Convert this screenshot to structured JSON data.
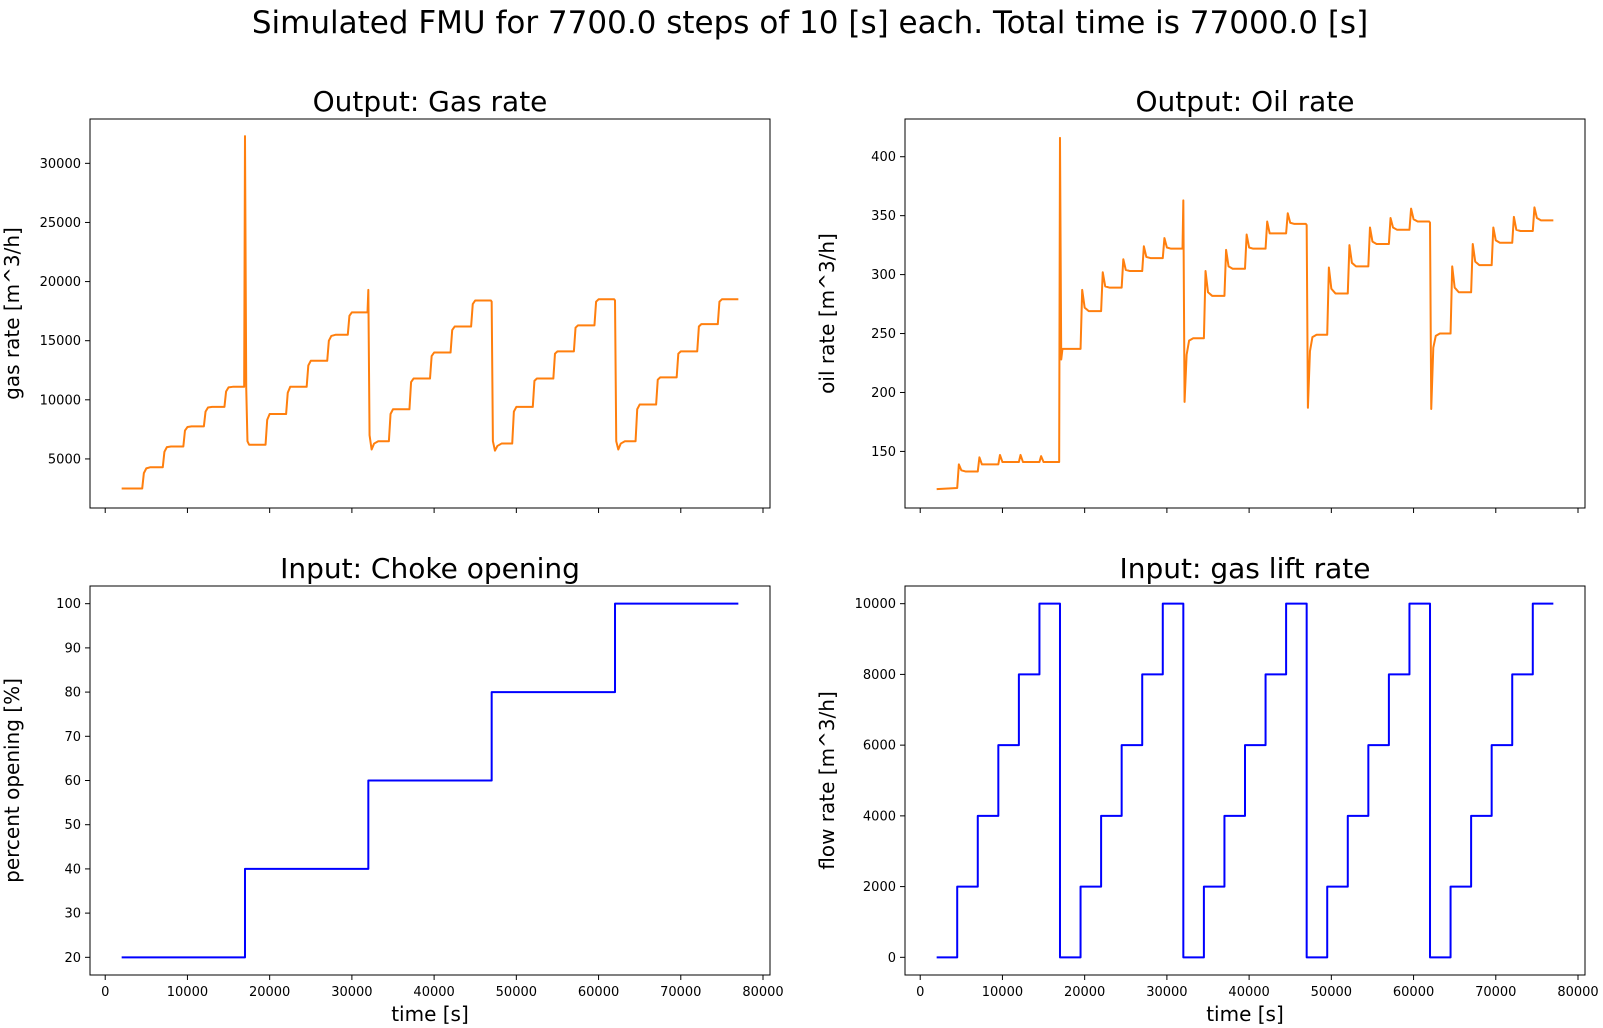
{
  "figure": {
    "suptitle": "Simulated FMU for 7700.0 steps of 10 [s] each. Total time is 77000.0 [s]"
  },
  "colors": {
    "output_series": "#ff7f0e",
    "input_series": "#0000ff",
    "axes": "#000000",
    "background": "#ffffff"
  },
  "chart_data": [
    {
      "id": "gas_rate",
      "type": "line",
      "title": "Output: Gas rate",
      "xlabel": "",
      "ylabel": "gas rate [m^3/h]",
      "xlim": [
        -1850,
        80850
      ],
      "ylim": [
        850,
        33750
      ],
      "xticks": [
        0,
        10000,
        20000,
        30000,
        40000,
        50000,
        60000,
        70000,
        80000
      ],
      "xtick_labels_visible": false,
      "yticks": [
        5000,
        10000,
        15000,
        20000,
        25000,
        30000
      ],
      "ytick_labels": [
        "5000",
        "10000",
        "15000",
        "20000",
        "25000",
        "30000"
      ],
      "color": "#ff7f0e",
      "grid": false,
      "series": [
        {
          "x": [
            2000,
            4500,
            4700,
            5000,
            5500,
            7000,
            7200,
            7500,
            8000,
            9500,
            9700,
            10000,
            10500,
            12000,
            12200,
            12500,
            13000,
            14500,
            14700,
            15000,
            15500,
            16900,
            17000,
            17150,
            17300,
            17500,
            18000,
            19500,
            19700,
            20000,
            20500,
            22000,
            22200,
            22500,
            23000,
            24500,
            24700,
            25000,
            25500,
            27000,
            27200,
            27500,
            28000,
            29500,
            29700,
            30000,
            30500,
            31900,
            32000,
            32150,
            32400,
            32700,
            33200,
            34500,
            34700,
            35000,
            35500,
            37000,
            37200,
            37500,
            38000,
            39500,
            39700,
            40000,
            40500,
            42000,
            42200,
            42500,
            43000,
            44500,
            44700,
            45000,
            45500,
            46900,
            47000,
            47150,
            47400,
            47700,
            48200,
            49500,
            49700,
            50000,
            50500,
            52000,
            52200,
            52500,
            53000,
            54500,
            54700,
            55000,
            55500,
            57000,
            57200,
            57500,
            58000,
            59500,
            59700,
            60000,
            60500,
            61900,
            62000,
            62150,
            62400,
            62700,
            63200,
            64500,
            64700,
            65000,
            65500,
            67000,
            67200,
            67500,
            68000,
            69500,
            69700,
            70000,
            70500,
            72000,
            72200,
            72500,
            73000,
            74500,
            74700,
            75000,
            75500,
            77000
          ],
          "y": [
            2500,
            2500,
            3800,
            4200,
            4300,
            4300,
            5600,
            6000,
            6050,
            6050,
            7400,
            7700,
            7750,
            7750,
            9000,
            9350,
            9400,
            9400,
            10700,
            11050,
            11100,
            11100,
            32300,
            11000,
            6500,
            6200,
            6200,
            6200,
            8300,
            8800,
            8800,
            8800,
            10600,
            11100,
            11100,
            11100,
            12900,
            13300,
            13300,
            13300,
            15000,
            15400,
            15500,
            15500,
            17100,
            17400,
            17400,
            17400,
            19300,
            7000,
            5800,
            6300,
            6500,
            6500,
            8800,
            9200,
            9200,
            9200,
            11500,
            11800,
            11800,
            11800,
            13700,
            14000,
            14000,
            14000,
            15900,
            16200,
            16200,
            16200,
            18100,
            18400,
            18400,
            18400,
            18300,
            6500,
            5700,
            6100,
            6300,
            6300,
            9000,
            9400,
            9400,
            9400,
            11600,
            11800,
            11800,
            11800,
            13900,
            14100,
            14100,
            14100,
            16100,
            16300,
            16300,
            16300,
            18300,
            18500,
            18500,
            18500,
            18400,
            6500,
            5800,
            6300,
            6500,
            6500,
            9200,
            9600,
            9600,
            9600,
            11700,
            11900,
            11900,
            11900,
            13900,
            14100,
            14100,
            14100,
            16200,
            16400,
            16400,
            16400,
            18300,
            18500,
            18500,
            18500
          ]
        }
      ]
    },
    {
      "id": "oil_rate",
      "type": "line",
      "title": "Output: Oil rate",
      "xlabel": "",
      "ylabel": "oil rate [m^3/h]",
      "xlim": [
        -1850,
        80850
      ],
      "ylim": [
        102,
        432
      ],
      "xticks": [
        0,
        10000,
        20000,
        30000,
        40000,
        50000,
        60000,
        70000,
        80000
      ],
      "xtick_labels_visible": false,
      "yticks": [
        150,
        200,
        250,
        300,
        350,
        400
      ],
      "ytick_labels": [
        "150",
        "200",
        "250",
        "300",
        "350",
        "400"
      ],
      "color": "#ff7f0e",
      "grid": false,
      "series": [
        {
          "x": [
            2000,
            4500,
            4700,
            5000,
            5500,
            7000,
            7200,
            7500,
            8000,
            9500,
            9700,
            10000,
            10500,
            12000,
            12200,
            12500,
            13000,
            14500,
            14700,
            15000,
            15500,
            16900,
            17000,
            17150,
            17300,
            17600,
            18000,
            19500,
            19700,
            20000,
            20500,
            22000,
            22200,
            22500,
            23000,
            24500,
            24700,
            25000,
            25500,
            27000,
            27200,
            27500,
            28000,
            29500,
            29700,
            30000,
            30500,
            31900,
            32000,
            32150,
            32400,
            32700,
            33200,
            34500,
            34700,
            35000,
            35500,
            37000,
            37200,
            37500,
            38000,
            39500,
            39700,
            40000,
            40500,
            42000,
            42200,
            42500,
            43000,
            44500,
            44700,
            45000,
            45500,
            46900,
            47000,
            47150,
            47400,
            47700,
            48200,
            49500,
            49700,
            50000,
            50500,
            52000,
            52200,
            52500,
            53000,
            54500,
            54700,
            55000,
            55500,
            57000,
            57200,
            57500,
            58000,
            59500,
            59700,
            60000,
            60500,
            61900,
            62000,
            62150,
            62400,
            62700,
            63200,
            64500,
            64700,
            65000,
            65500,
            67000,
            67200,
            67500,
            68000,
            69500,
            69700,
            70000,
            70500,
            72000,
            72200,
            72500,
            73000,
            74500,
            74700,
            75000,
            75500,
            77000
          ],
          "y": [
            118,
            119,
            139,
            134,
            133,
            133,
            145,
            139,
            139,
            139,
            147,
            141,
            141,
            141,
            147,
            141,
            141,
            141,
            146,
            141,
            141,
            141,
            416,
            228,
            237,
            237,
            237,
            237,
            287,
            272,
            269,
            269,
            302,
            290,
            289,
            289,
            313,
            304,
            303,
            303,
            324,
            315,
            314,
            314,
            331,
            323,
            322,
            322,
            363,
            192,
            232,
            244,
            246,
            246,
            303,
            285,
            282,
            282,
            321,
            307,
            305,
            305,
            334,
            323,
            322,
            322,
            345,
            335,
            335,
            335,
            352,
            344,
            343,
            343,
            342,
            187,
            235,
            247,
            249,
            249,
            306,
            288,
            284,
            284,
            325,
            310,
            307,
            307,
            340,
            328,
            326,
            326,
            348,
            340,
            338,
            338,
            356,
            347,
            345,
            345,
            344,
            186,
            238,
            248,
            250,
            250,
            307,
            289,
            285,
            285,
            326,
            311,
            308,
            308,
            340,
            329,
            327,
            327,
            349,
            338,
            337,
            337,
            357,
            348,
            346,
            346
          ]
        }
      ]
    },
    {
      "id": "choke_opening",
      "type": "line",
      "title": "Input: Choke opening",
      "xlabel": "time [s]",
      "ylabel": "percent opening [%]",
      "xlim": [
        -1850,
        80850
      ],
      "ylim": [
        16,
        104
      ],
      "xticks": [
        0,
        10000,
        20000,
        30000,
        40000,
        50000,
        60000,
        70000,
        80000
      ],
      "xtick_labels": [
        "0",
        "10000",
        "20000",
        "30000",
        "40000",
        "50000",
        "60000",
        "70000",
        "80000"
      ],
      "yticks": [
        20,
        30,
        40,
        50,
        60,
        70,
        80,
        90,
        100
      ],
      "ytick_labels": [
        "20",
        "30",
        "40",
        "50",
        "60",
        "70",
        "80",
        "90",
        "100"
      ],
      "color": "#0000ff",
      "grid": false,
      "series": [
        {
          "x": [
            2000,
            17000,
            17000,
            32000,
            32000,
            47000,
            47000,
            62000,
            62000,
            77000
          ],
          "y": [
            20,
            20,
            40,
            40,
            60,
            60,
            80,
            80,
            100,
            100
          ]
        }
      ]
    },
    {
      "id": "gas_lift_rate",
      "type": "line",
      "title": "Input: gas lift rate",
      "xlabel": "time [s]",
      "ylabel": "flow rate [m^3/h]",
      "xlim": [
        -1850,
        80850
      ],
      "ylim": [
        -500,
        10500
      ],
      "xticks": [
        0,
        10000,
        20000,
        30000,
        40000,
        50000,
        60000,
        70000,
        80000
      ],
      "xtick_labels": [
        "0",
        "10000",
        "20000",
        "30000",
        "40000",
        "50000",
        "60000",
        "70000",
        "80000"
      ],
      "yticks": [
        0,
        2000,
        4000,
        6000,
        8000,
        10000
      ],
      "ytick_labels": [
        "0",
        "2000",
        "4000",
        "6000",
        "8000",
        "10000"
      ],
      "color": "#0000ff",
      "grid": false,
      "series": [
        {
          "x": [
            2000,
            4500,
            4500,
            7000,
            7000,
            9500,
            9500,
            12000,
            12000,
            14500,
            14500,
            17000,
            17000,
            19500,
            19500,
            22000,
            22000,
            24500,
            24500,
            27000,
            27000,
            29500,
            29500,
            32000,
            32000,
            34500,
            34500,
            37000,
            37000,
            39500,
            39500,
            42000,
            42000,
            44500,
            44500,
            47000,
            47000,
            49500,
            49500,
            52000,
            52000,
            54500,
            54500,
            57000,
            57000,
            59500,
            59500,
            62000,
            62000,
            64500,
            64500,
            67000,
            67000,
            69500,
            69500,
            72000,
            72000,
            74500,
            74500,
            77000
          ],
          "y": [
            0,
            0,
            2000,
            2000,
            4000,
            4000,
            6000,
            6000,
            8000,
            8000,
            10000,
            10000,
            0,
            0,
            2000,
            2000,
            4000,
            4000,
            6000,
            6000,
            8000,
            8000,
            10000,
            10000,
            0,
            0,
            2000,
            2000,
            4000,
            4000,
            6000,
            6000,
            8000,
            8000,
            10000,
            10000,
            0,
            0,
            2000,
            2000,
            4000,
            4000,
            6000,
            6000,
            8000,
            8000,
            10000,
            10000,
            0,
            0,
            2000,
            2000,
            4000,
            4000,
            6000,
            6000,
            8000,
            8000,
            10000,
            10000
          ]
        }
      ]
    }
  ]
}
